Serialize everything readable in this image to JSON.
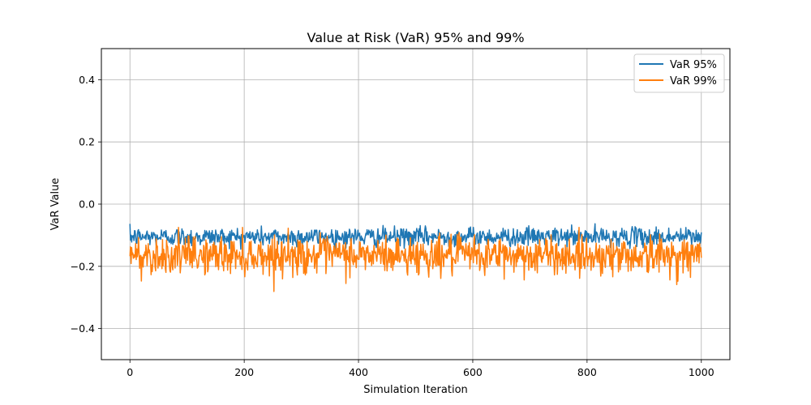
{
  "chart_data": {
    "type": "line",
    "title": "Value at Risk (VaR) 95% and 99%",
    "xlabel": "Simulation Iteration",
    "ylabel": "VaR Value",
    "xlim": [
      -50,
      1050
    ],
    "ylim": [
      -0.5,
      0.5
    ],
    "x_ticks": [
      0,
      200,
      400,
      600,
      800,
      1000
    ],
    "y_ticks": [
      -0.4,
      -0.2,
      0.0,
      0.2,
      0.4
    ],
    "x_tick_labels": [
      "0",
      "200",
      "400",
      "600",
      "800",
      "1000"
    ],
    "y_tick_labels": [
      "−0.4",
      "−0.2",
      "0.0",
      "0.2",
      "0.4"
    ],
    "grid": true,
    "legend_position": "top-right",
    "x": {
      "start": 0,
      "end": 1000,
      "count": 1001
    },
    "series": [
      {
        "name": "VaR 95%",
        "color": "#1f77b4",
        "mean": -0.105,
        "std": 0.015,
        "min": -0.145,
        "max": -0.045
      },
      {
        "name": "VaR 99%",
        "color": "#ff7f0e",
        "mean": -0.165,
        "std": 0.03,
        "min": -0.3,
        "max": -0.075
      }
    ]
  }
}
